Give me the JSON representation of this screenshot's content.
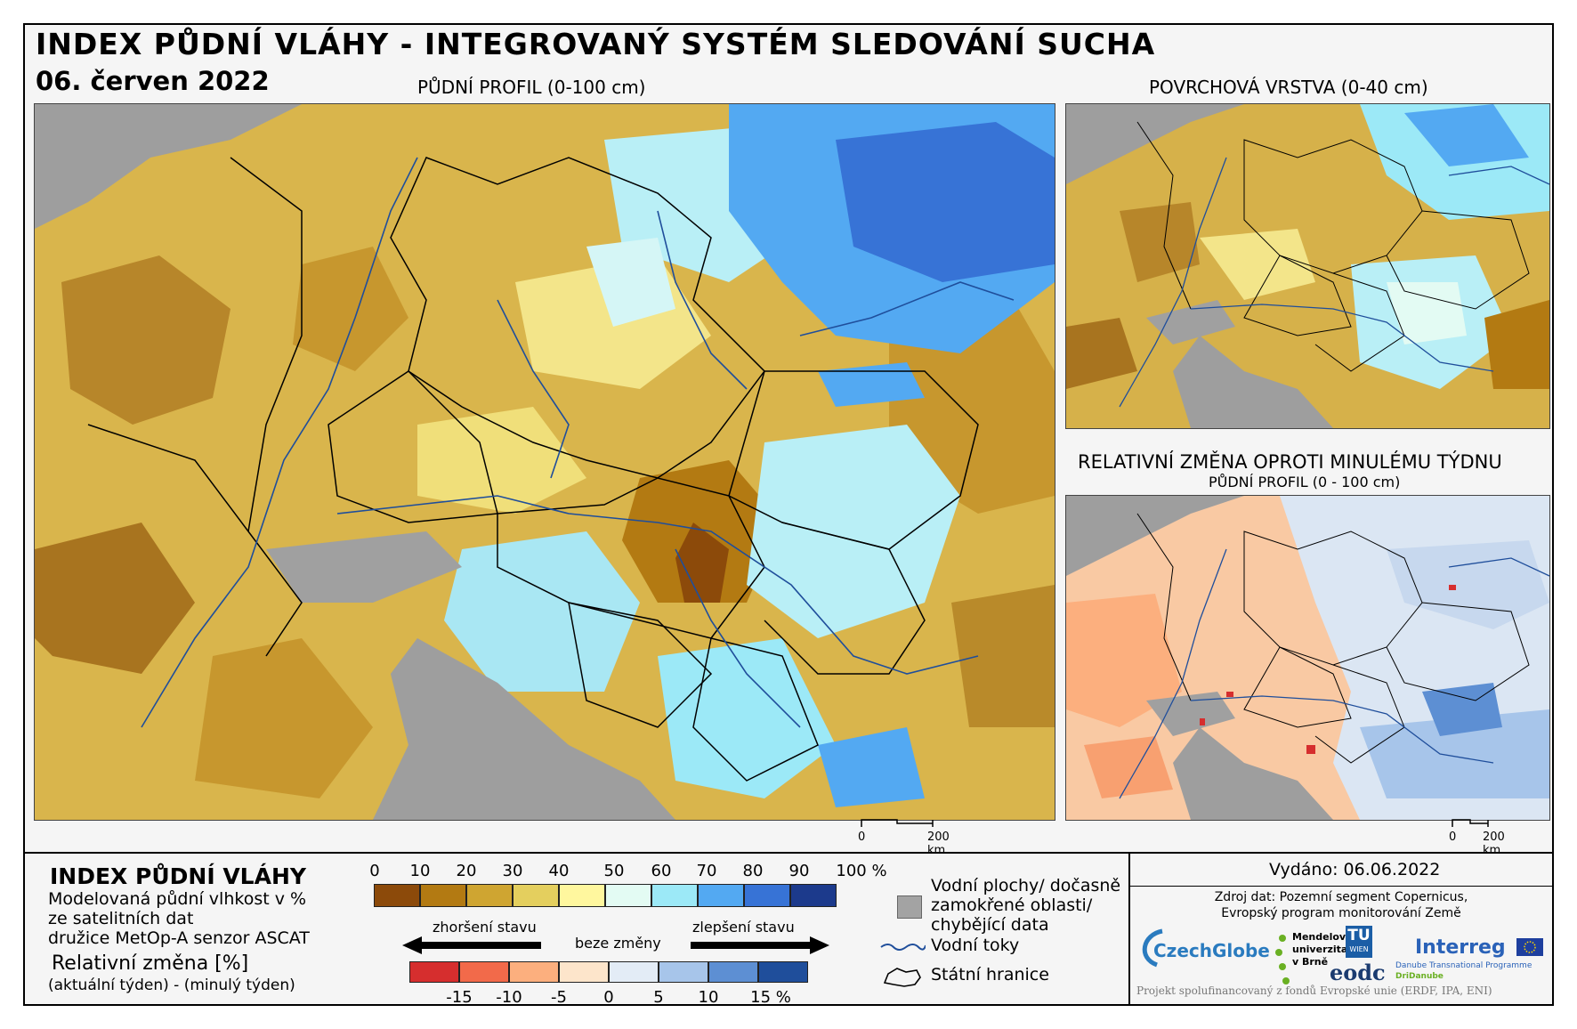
{
  "header": {
    "title": "INDEX PŮDNÍ VLÁHY - INTEGROVANÝ SYSTÉM SLEDOVÁNÍ SUCHA",
    "date": "06. červen 2022"
  },
  "panels": {
    "main": {
      "title": "PŮDNÍ PROFIL (0-100 cm)",
      "scale_zero": "0",
      "scale_label": "200 km"
    },
    "surface": {
      "title": "POVRCHOVÁ VRSTVA (0-40 cm)"
    },
    "change": {
      "title": "RELATIVNÍ ZMĚNA OPROTI MINULÉMU TÝDNU",
      "subtitle": "PŮDNÍ PROFIL (0 - 100 cm)",
      "scale_zero": "0",
      "scale_label": "200 km"
    }
  },
  "legend": {
    "title": "INDEX PŮDNÍ VLÁHY",
    "desc_line1": "Modelovaná půdní vlhkost v %",
    "desc_line2": "ze satelitních dat",
    "desc_line3": "družice MetOp-A senzor ASCAT",
    "rel_title": "Relativní změna [%]",
    "rel_sub": "(aktuální týden) - (minulý týden)",
    "index_ticks": [
      "0",
      "10",
      "20",
      "30",
      "40",
      "50",
      "60",
      "70",
      "80",
      "90",
      "100 %"
    ],
    "index_colors": [
      "#8c4a0a",
      "#b37a12",
      "#cfa531",
      "#e4cf5e",
      "#fff79e",
      "#e3fbf3",
      "#9ce9f7",
      "#53a9f2",
      "#3773d6",
      "#1c3a8c"
    ],
    "arrow_worse": "zhoršení stavu",
    "arrow_none": "beze změny",
    "arrow_better": "zlepšení stavu",
    "rel_ticks": [
      "-15",
      "-10",
      "-5",
      "0",
      "5",
      "10",
      "15 %"
    ],
    "rel_colors": [
      "#d62e2e",
      "#f26a4a",
      "#fcaf7e",
      "#fde5cb",
      "#e3ecf6",
      "#a7c5ea",
      "#5d8fd3",
      "#1f4e9b"
    ],
    "key_water_line1": "Vodní plochy/ dočasně",
    "key_water_line2": "zamokřené oblasti/",
    "key_water_line3": "chybějící data",
    "key_rivers": "Vodní toky",
    "key_borders": "Státní hranice"
  },
  "info": {
    "issued": "Vydáno: 06.06.2022",
    "source_line1": "Zdroj dat: Pozemní segment Copernicus,",
    "source_line2": "Evropský program monitorování Země",
    "logos": {
      "czechglobe": "CzechGlobe",
      "mendel_1": "Mendelova",
      "mendel_2": "univerzita",
      "mendel_3": "v Brně",
      "tu_1": "TU",
      "tu_2": "WIEN",
      "eodc": "eodc",
      "interreg": "Interreg",
      "interreg_sub1": "Danube Transnational Programme",
      "interreg_sub2": "DriDanube"
    },
    "footer": "Projekt spolufinancovaný z fondů Evropské unie (ERDF, IPA, ENI)"
  }
}
